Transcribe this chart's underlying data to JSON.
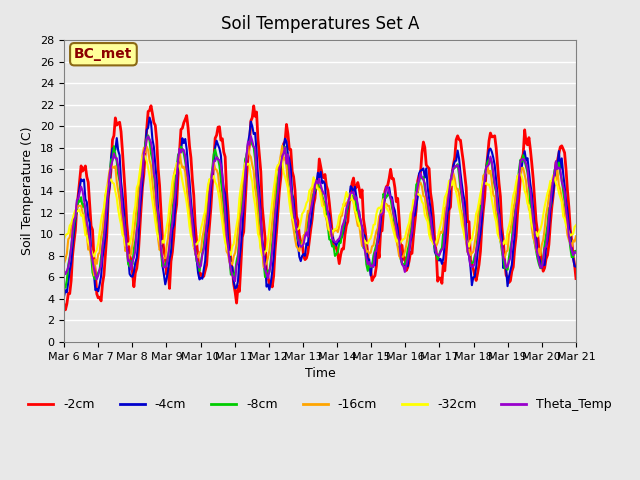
{
  "title": "Soil Temperatures Set A",
  "xlabel": "Time",
  "ylabel": "Soil Temperature (C)",
  "ylim": [
    0,
    28
  ],
  "yticks": [
    0,
    2,
    4,
    6,
    8,
    10,
    12,
    14,
    16,
    18,
    20,
    22,
    24,
    26,
    28
  ],
  "annotation_text": "BC_met",
  "annotation_color": "#8B0000",
  "annotation_bg": "#FFFF99",
  "annotation_edge": "#8B6914",
  "bg_color": "#E8E8E8",
  "series_colors": [
    "#FF0000",
    "#0000CC",
    "#00CC00",
    "#FFA500",
    "#FFFF00",
    "#9900CC"
  ],
  "series_labels": [
    "-2cm",
    "-4cm",
    "-8cm",
    "-16cm",
    "-32cm",
    "Theta_Temp"
  ],
  "x_tick_labels": [
    "Mar 6",
    "Mar 7",
    "Mar 8",
    "Mar 9",
    "Mar 10",
    "Mar 11",
    "Mar 12",
    "Mar 13",
    "Mar 14",
    "Mar 15",
    "Mar 16",
    "Mar 17",
    "Mar 18",
    "Mar 19",
    "Mar 20",
    "Mar 21"
  ],
  "n_days": 15,
  "points_per_day": 24
}
